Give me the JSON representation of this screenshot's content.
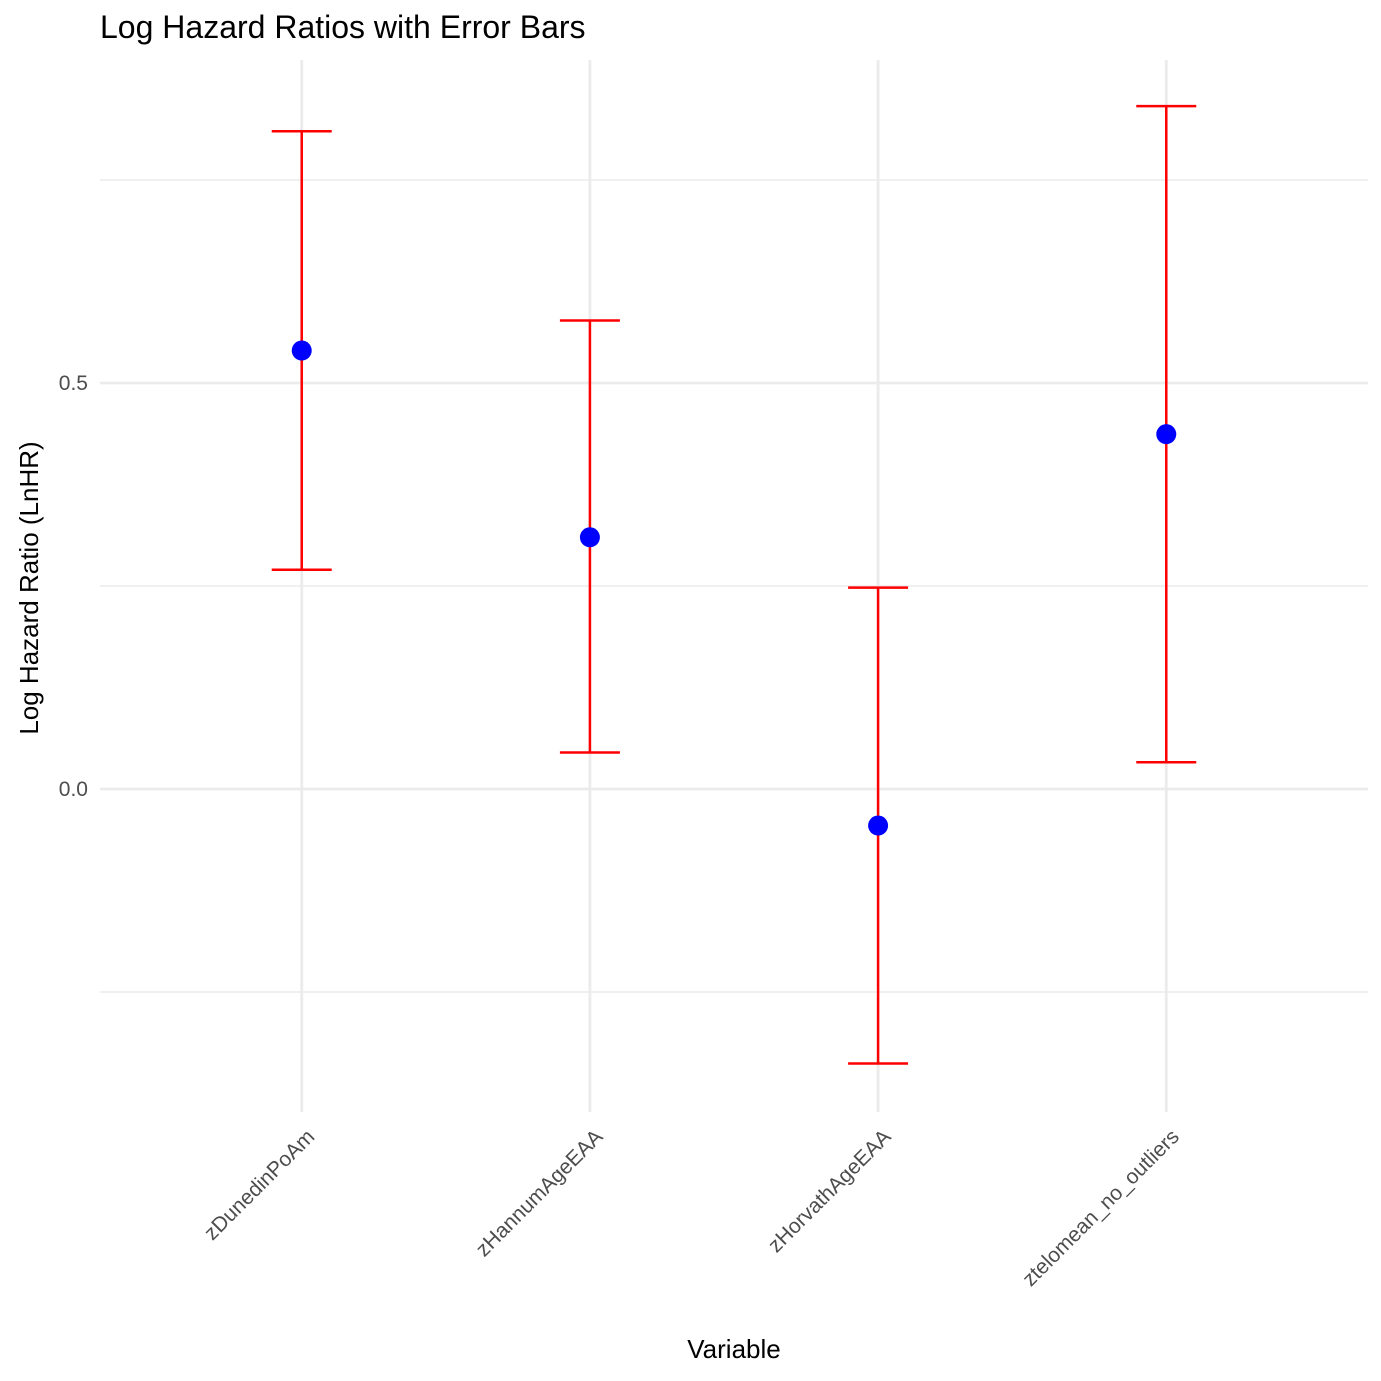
{
  "chart_data": {
    "type": "scatter",
    "title": "Log Hazard Ratios with Error Bars",
    "xlabel": "Variable",
    "ylabel": "Log Hazard Ratio (LnHR)",
    "categories": [
      "zDunedinPoAm",
      "zHannumAgeEAA",
      "zHorvathAgeEAA",
      "ztelomean_no_outliers"
    ],
    "points": [
      {
        "category": "zDunedinPoAm",
        "estimate": 0.54,
        "lower": 0.27,
        "upper": 0.81
      },
      {
        "category": "zHannumAgeEAA",
        "estimate": 0.31,
        "lower": 0.045,
        "upper": 0.577
      },
      {
        "category": "zHorvathAgeEAA",
        "estimate": -0.045,
        "lower": -0.338,
        "upper": 0.248
      },
      {
        "category": "ztelomean_no_outliers",
        "estimate": 0.437,
        "lower": 0.033,
        "upper": 0.841
      }
    ],
    "ylim": [
      -0.4,
      0.895
    ],
    "y_major_ticks": [
      0.0,
      0.5
    ],
    "y_tick_labels": [
      "0.0",
      "0.5"
    ],
    "y_minor_gridlines": [
      -0.25,
      0.25,
      0.75
    ],
    "grid": true,
    "legend": "none",
    "colors": {
      "point": "#0000ff",
      "error_bar": "#ff0000",
      "grid": "#ebebeb"
    }
  }
}
